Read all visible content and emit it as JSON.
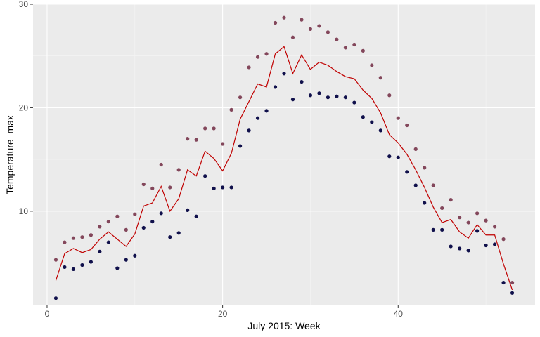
{
  "chart_data": {
    "type": "scatter",
    "title": "",
    "xlabel": "July 2015: Week",
    "ylabel": "Temperature_max",
    "xlim": [
      -1.6,
      55.6
    ],
    "ylim": [
      0.9,
      30.0
    ],
    "x_ticks": [
      0,
      20,
      40
    ],
    "x_tick_labels": [
      "0",
      "20",
      "40"
    ],
    "y_ticks": [
      10,
      20,
      30
    ],
    "y_tick_labels": [
      "10",
      "20",
      "30"
    ],
    "grid": true,
    "legend": "none",
    "x": [
      1,
      2,
      3,
      4,
      5,
      6,
      7,
      8,
      9,
      10,
      11,
      12,
      13,
      14,
      15,
      16,
      17,
      18,
      19,
      20,
      21,
      22,
      23,
      24,
      25,
      26,
      27,
      28,
      29,
      30,
      31,
      32,
      33,
      34,
      35,
      36,
      37,
      38,
      39,
      40,
      41,
      42,
      43,
      44,
      45,
      46,
      47,
      48,
      49,
      50,
      51,
      52,
      53
    ],
    "series": [
      {
        "style": "points",
        "color": "#83475b",
        "values": [
          5.3,
          7.0,
          7.4,
          7.5,
          7.7,
          8.5,
          9.0,
          9.5,
          8.2,
          9.7,
          12.6,
          12.2,
          14.5,
          12.3,
          14.0,
          17.0,
          16.9,
          18.0,
          18.0,
          16.5,
          19.8,
          21.0,
          23.9,
          24.9,
          25.2,
          28.2,
          28.7,
          26.8,
          28.5,
          27.6,
          27.9,
          27.3,
          26.6,
          25.8,
          26.1,
          25.5,
          24.1,
          22.9,
          21.2,
          19.0,
          18.3,
          16.0,
          14.2,
          12.5,
          10.3,
          11.1,
          9.4,
          8.9,
          9.8,
          9.1,
          8.5,
          7.3,
          3.1
        ]
      },
      {
        "style": "points",
        "color": "#10104b",
        "values": [
          1.6,
          4.6,
          4.4,
          4.8,
          5.1,
          6.1,
          7.0,
          4.5,
          5.3,
          5.7,
          8.4,
          9.0,
          9.8,
          7.5,
          7.9,
          10.1,
          9.5,
          13.4,
          12.2,
          12.3,
          12.3,
          16.3,
          17.8,
          19.0,
          19.7,
          22.0,
          23.3,
          20.8,
          22.5,
          21.2,
          21.4,
          21.0,
          21.1,
          21.0,
          20.5,
          19.1,
          18.6,
          17.8,
          15.3,
          15.2,
          13.8,
          12.5,
          10.8,
          8.2,
          8.2,
          6.6,
          6.4,
          6.2,
          8.1,
          6.7,
          6.8,
          3.1,
          2.1
        ]
      },
      {
        "style": "line",
        "color": "#c00000",
        "values": [
          3.3,
          5.9,
          6.4,
          6.0,
          6.3,
          7.3,
          8.0,
          7.3,
          6.6,
          7.8,
          10.5,
          10.8,
          12.4,
          10.0,
          11.2,
          14.0,
          13.4,
          15.8,
          15.1,
          13.9,
          15.6,
          18.9,
          20.6,
          22.3,
          22.0,
          25.2,
          25.9,
          23.3,
          25.1,
          23.7,
          24.4,
          24.1,
          23.5,
          23.0,
          22.8,
          21.7,
          20.9,
          19.5,
          17.4,
          16.6,
          15.5,
          14.0,
          12.3,
          10.4,
          8.9,
          9.2,
          8.0,
          7.4,
          8.7,
          7.7,
          7.7,
          4.9,
          2.4
        ]
      }
    ]
  }
}
